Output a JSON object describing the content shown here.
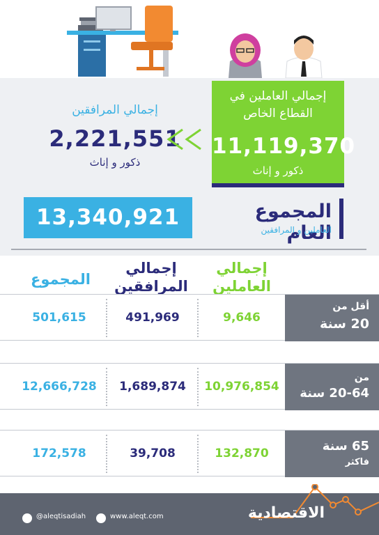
{
  "workers": {
    "title": "إجمالي العاملين في القطاع الخاص",
    "value": "11,119,370",
    "subtitle": "ذكور و إناث"
  },
  "dependents": {
    "title": "إجمالي المرافقين",
    "value": "2,221,551",
    "subtitle": "ذكور و إناث"
  },
  "grand_total": {
    "title": "المجموع العام",
    "subtitle": "العاملين و المرافقين",
    "value": "13,340,921"
  },
  "table": {
    "headers": {
      "workers": "إجمالي العاملين",
      "dependents": "إجمالي المرافقين",
      "total": "المجموع"
    },
    "rows": [
      {
        "label_line1": "أقل من",
        "label_line2": "20 سنة",
        "workers": "9,646",
        "dependents": "491,969",
        "total": "501,615"
      },
      {
        "label_line1": "من",
        "label_line2": "20-64 سنة",
        "workers": "10,976,854",
        "dependents": "1,689,874",
        "total": "12,666,728"
      },
      {
        "label_line1": "65 سنة",
        "label_line2": "فاكثر",
        "workers": "132,870",
        "dependents": "39,708",
        "total": "172,578"
      }
    ]
  },
  "footer": {
    "twitter_handle": "@aleqtisadiah",
    "website": "www.aleqt.com",
    "logo": "الاقتصادية",
    "twitter_icon": "twitter-icon",
    "web_icon": "globe-icon"
  },
  "colors": {
    "green": "#7ed334",
    "navy": "#2b2b7a",
    "blue": "#3ab1e3",
    "gray": "#6f7580"
  }
}
